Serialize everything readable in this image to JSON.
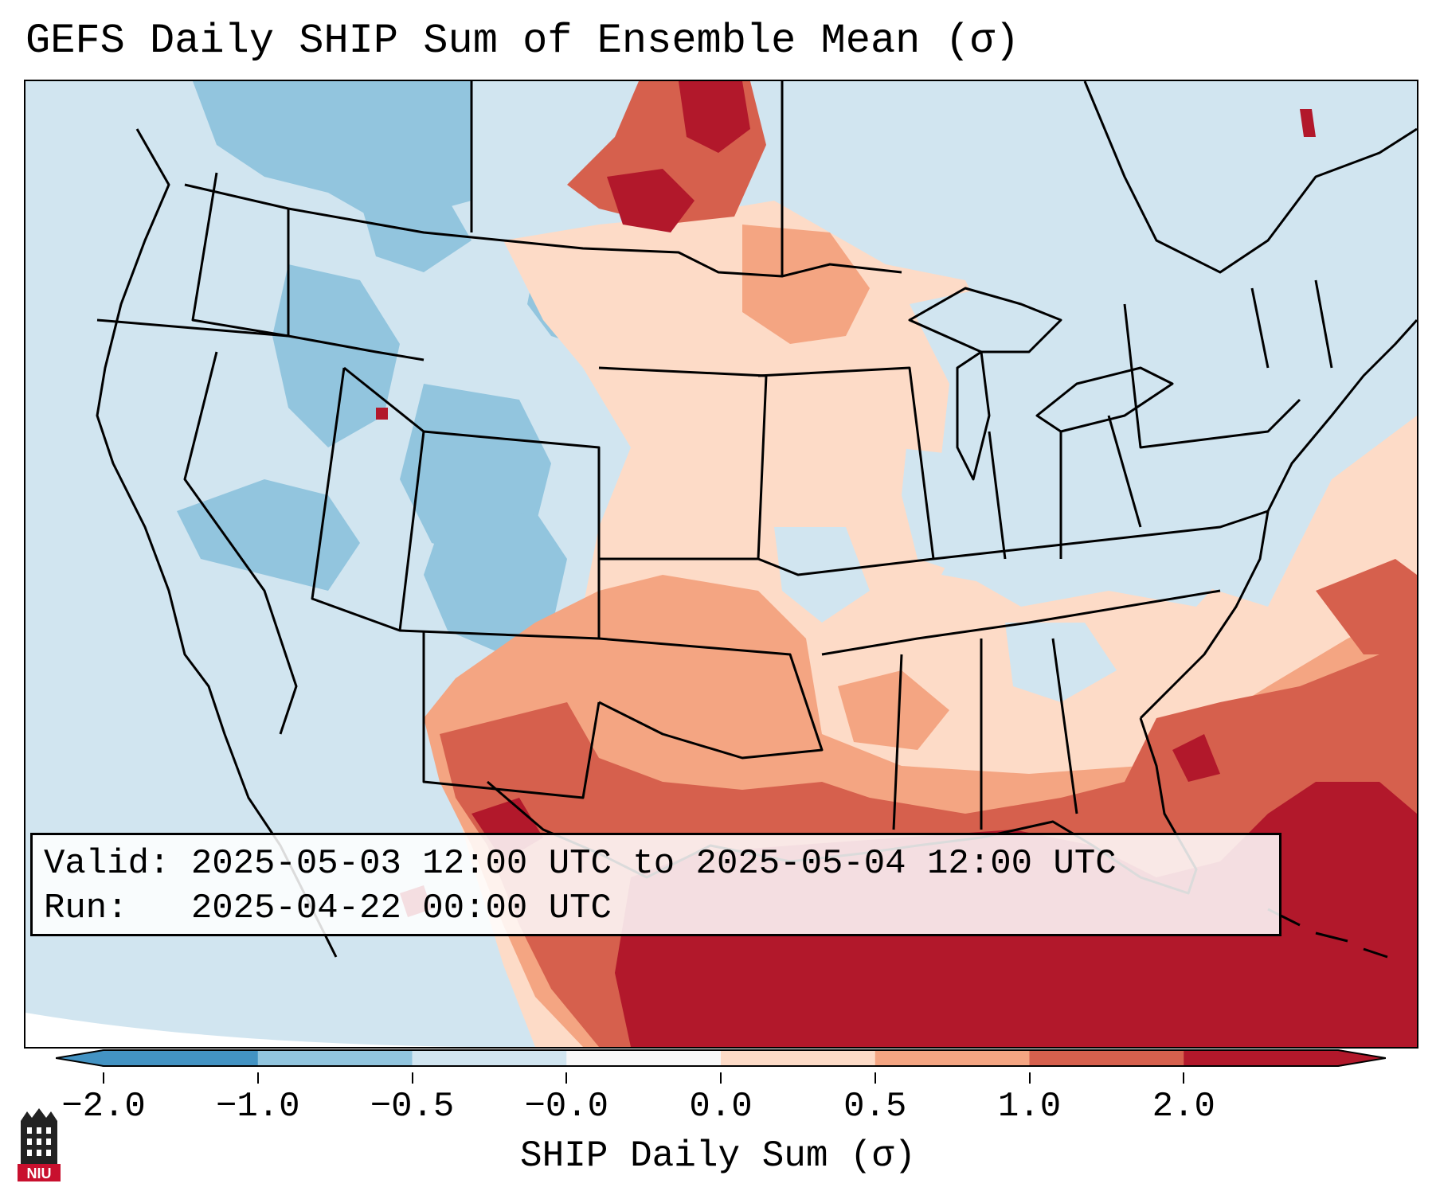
{
  "title": "GEFS Daily SHIP Sum of Ensemble Mean (σ)",
  "info": {
    "valid_label": "Valid:",
    "valid_value": "2025-05-03 12:00 UTC to 2025-05-04 12:00 UTC",
    "run_label": "Run:",
    "run_value": "2025-04-22 00:00 UTC"
  },
  "colorbar": {
    "label": "SHIP Daily Sum (σ)",
    "ticks": [
      "−2.0",
      "−1.0",
      "−0.5",
      "−0.0",
      "0.0",
      "0.5",
      "1.0",
      "2.0"
    ],
    "colors": [
      "#4393c3",
      "#92c5de",
      "#d1e5f0",
      "#f7f7f7",
      "#fddbc7",
      "#f4a582",
      "#d6604d",
      "#b2182b"
    ]
  },
  "logo": {
    "text": "NIU",
    "icon": "university-tower-icon"
  }
}
